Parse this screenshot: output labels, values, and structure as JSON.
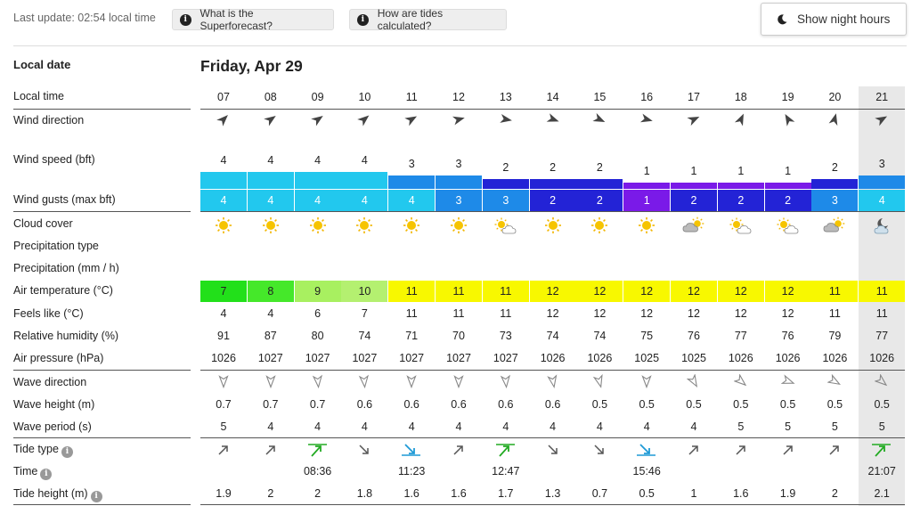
{
  "header": {
    "last_update": "Last update: 02:54 local time",
    "superforecast_btn": "What is the Superforecast?",
    "tides_btn": "How are tides calculated?",
    "night_btn": "Show night hours"
  },
  "labels": {
    "local_date": "Local date",
    "local_time": "Local time",
    "wind_direction": "Wind direction",
    "wind_speed": "Wind speed (bft)",
    "wind_gusts": "Wind gusts (max bft)",
    "cloud_cover": "Cloud cover",
    "precip_type": "Precipitation type",
    "precip": "Precipitation (mm / h)",
    "air_temp": "Air temperature (°C)",
    "feels_like": "Feels like (°C)",
    "humidity": "Relative humidity (%)",
    "pressure": "Air pressure (hPa)",
    "wave_direction": "Wave direction",
    "wave_height": "Wave height (m)",
    "wave_period": "Wave period (s)",
    "tide_type": "Tide type",
    "time": "Time",
    "tide_height": "Tide height (m)"
  },
  "date": "Friday, Apr 29",
  "colors": {
    "wind_scale": {
      "1": "#7a1ae8",
      "2": "#2323d6",
      "3": "#1e8ae8",
      "4": "#22c8ee"
    },
    "temp_scale": {
      "7": "#22e01a",
      "8": "#45e82a",
      "9": "#a8f060",
      "10": "#b4f070",
      "11": "#f8f800",
      "12": "#f8f800"
    },
    "highlight": "#e8e8e8",
    "tide_high": "#22aa22",
    "tide_low": "#1e9ad6"
  },
  "hours": [
    "07",
    "08",
    "09",
    "10",
    "11",
    "12",
    "13",
    "14",
    "15",
    "16",
    "17",
    "18",
    "19",
    "20",
    "21"
  ],
  "wind_dir_deg": [
    45,
    55,
    55,
    50,
    60,
    75,
    100,
    110,
    115,
    105,
    65,
    25,
    330,
    15,
    60
  ],
  "wind_speed": [
    "4",
    "4",
    "4",
    "4",
    "3",
    "3",
    "2",
    "2",
    "2",
    "1",
    "1",
    "1",
    "1",
    "2",
    "3"
  ],
  "wind_speed_num": [
    4,
    4,
    4,
    4,
    3,
    3,
    2,
    2,
    2,
    1,
    1,
    1,
    1,
    2,
    3
  ],
  "wind_gusts": [
    "4",
    "4",
    "4",
    "4",
    "4",
    "3",
    "3",
    "2",
    "2",
    "1",
    "2",
    "2",
    "2",
    "3",
    "4"
  ],
  "cloud_icon": [
    "sun",
    "sun",
    "sun",
    "sun",
    "sun",
    "sun",
    "sun-cloud",
    "sun",
    "sun",
    "sun",
    "cloud-sun",
    "sun-cloud",
    "sun-cloud",
    "cloud-sun",
    "moon-cloud"
  ],
  "air_temp": [
    "7",
    "8",
    "9",
    "10",
    "11",
    "11",
    "11",
    "12",
    "12",
    "12",
    "12",
    "12",
    "12",
    "11",
    "11"
  ],
  "feels_like": [
    "4",
    "4",
    "6",
    "7",
    "11",
    "11",
    "11",
    "12",
    "12",
    "12",
    "12",
    "12",
    "12",
    "11",
    "11"
  ],
  "humidity": [
    "91",
    "87",
    "80",
    "74",
    "71",
    "70",
    "73",
    "74",
    "74",
    "75",
    "76",
    "77",
    "76",
    "79",
    "77"
  ],
  "pressure": [
    "1026",
    "1027",
    "1027",
    "1027",
    "1027",
    "1027",
    "1027",
    "1026",
    "1026",
    "1025",
    "1025",
    "1026",
    "1026",
    "1026",
    "1026"
  ],
  "wave_dir_deg": [
    180,
    180,
    175,
    175,
    180,
    180,
    175,
    170,
    165,
    180,
    150,
    130,
    110,
    120,
    130
  ],
  "wave_height": [
    "0.7",
    "0.7",
    "0.7",
    "0.6",
    "0.6",
    "0.6",
    "0.6",
    "0.6",
    "0.5",
    "0.5",
    "0.5",
    "0.5",
    "0.5",
    "0.5",
    "0.5"
  ],
  "wave_period": [
    "5",
    "4",
    "4",
    "4",
    "4",
    "4",
    "4",
    "4",
    "4",
    "4",
    "4",
    "5",
    "5",
    "5",
    "5"
  ],
  "tide_type": [
    "rising",
    "rising",
    "high",
    "falling",
    "low",
    "rising",
    "high",
    "falling",
    "falling",
    "low",
    "rising",
    "rising",
    "rising",
    "rising",
    "high"
  ],
  "tide_time": [
    "",
    "",
    "08:36",
    "",
    "11:23",
    "",
    "12:47",
    "",
    "",
    "15:46",
    "",
    "",
    "",
    "",
    "21:07"
  ],
  "tide_height": [
    "1.9",
    "2",
    "2",
    "1.8",
    "1.6",
    "1.6",
    "1.7",
    "1.3",
    "0.7",
    "0.5",
    "1",
    "1.6",
    "1.9",
    "2",
    "2.1"
  ]
}
